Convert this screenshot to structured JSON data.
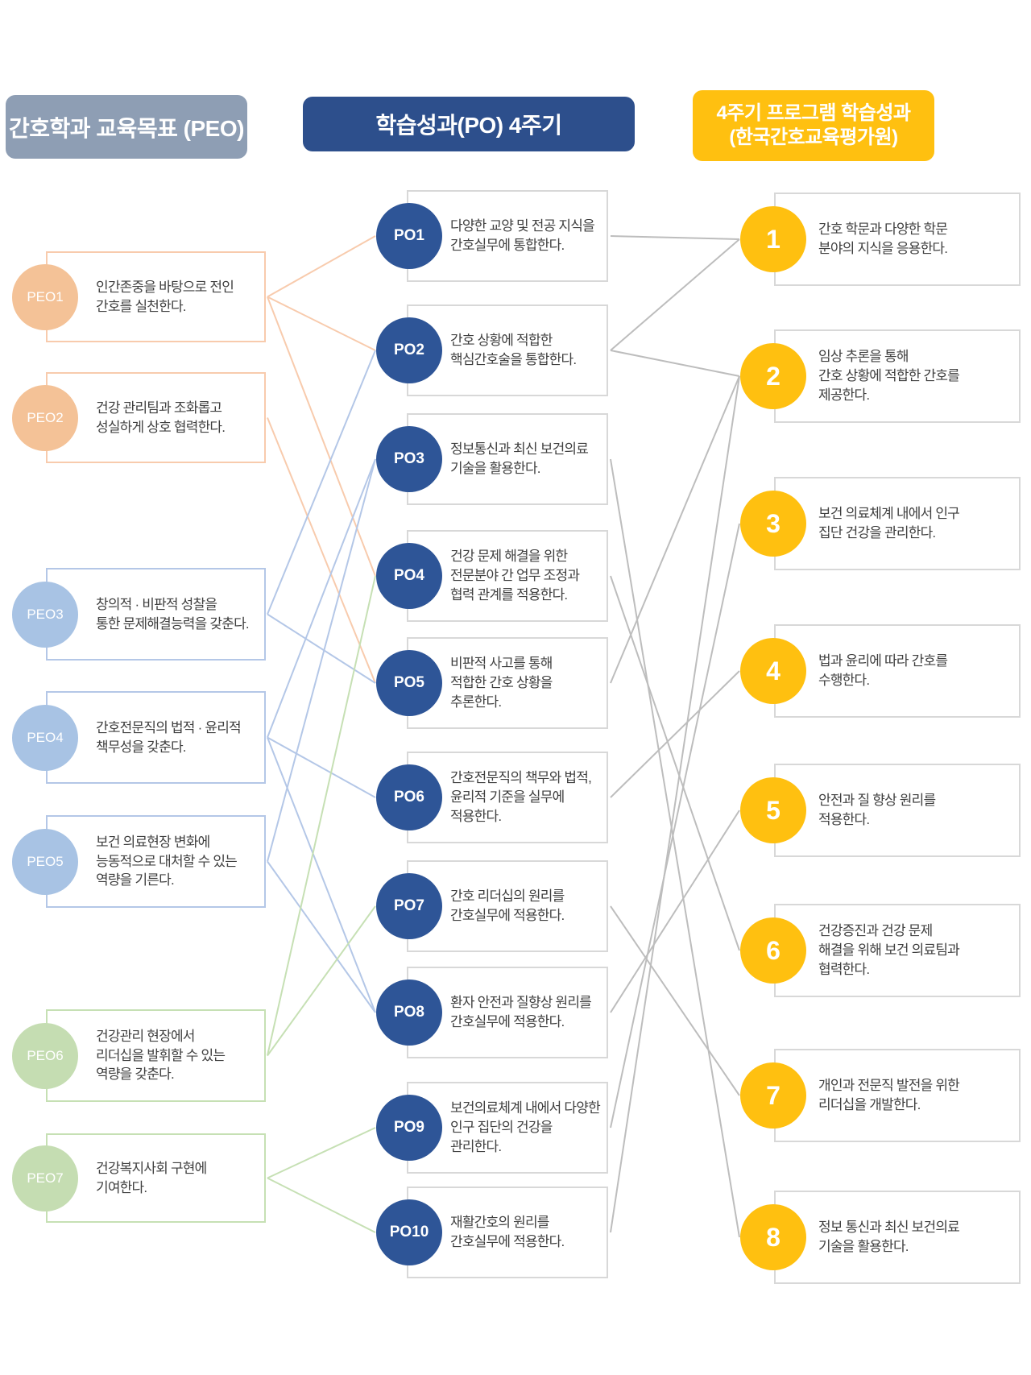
{
  "headers": {
    "left": "간호학과 교육목표 (PEO)",
    "middle": "학습성과(PO) 4주기",
    "right_line1": "4주기 프로그램 학습성과",
    "right_line2": "(한국간호교육평가원)"
  },
  "peo_items": [
    {
      "id": "PEO1",
      "label": "PEO1",
      "color_key": "peach",
      "text": "인간존중을 바탕으로 전인\n간호를 실천한다."
    },
    {
      "id": "PEO2",
      "label": "PEO2",
      "color_key": "peach",
      "text": "건강 관리팀과 조화롭고\n성실하게 상호 협력한다."
    },
    {
      "id": "PEO3",
      "label": "PEO3",
      "color_key": "blue",
      "text": "창의적 · 비판적 성찰을\n통한 문제해결능력을 갖춘다."
    },
    {
      "id": "PEO4",
      "label": "PEO4",
      "color_key": "blue",
      "text": "간호전문직의 법적 · 윤리적\n책무성을 갖춘다."
    },
    {
      "id": "PEO5",
      "label": "PEO5",
      "color_key": "blue",
      "text": "보건 의료현장 변화에\n능동적으로 대처할 수 있는\n역량을 기른다."
    },
    {
      "id": "PEO6",
      "label": "PEO6",
      "color_key": "green",
      "text": "건강관리 현장에서\n리더십을 발휘할 수 있는\n역량을 갖춘다."
    },
    {
      "id": "PEO7",
      "label": "PEO7",
      "color_key": "green",
      "text": "건강복지사회 구현에\n기여한다."
    }
  ],
  "po_items": [
    {
      "id": "PO1",
      "label": "PO1",
      "text": "다양한 교양 및 전공 지식을\n간호실무에 통합한다."
    },
    {
      "id": "PO2",
      "label": "PO2",
      "text": "간호 상황에 적합한\n핵심간호술을 통합한다."
    },
    {
      "id": "PO3",
      "label": "PO3",
      "text": "정보통신과 최신 보건의료\n기술을 활용한다."
    },
    {
      "id": "PO4",
      "label": "PO4",
      "text": "건강 문제 해결을 위한\n전문분야 간 업무 조정과\n협력 관계를 적용한다."
    },
    {
      "id": "PO5",
      "label": "PO5",
      "text": "비판적 사고를 통해\n적합한 간호 상황을\n추론한다."
    },
    {
      "id": "PO6",
      "label": "PO6",
      "text": "간호전문직의 책무와 법적,\n윤리적 기준을 실무에\n적용한다."
    },
    {
      "id": "PO7",
      "label": "PO7",
      "text": "간호 리더십의 원리를\n간호실무에 적용한다."
    },
    {
      "id": "PO8",
      "label": "PO8",
      "text": "환자 안전과 질향상 원리를\n간호실무에 적용한다."
    },
    {
      "id": "PO9",
      "label": "PO9",
      "text": "보건의료체계 내에서 다양한\n인구 집단의 건강을\n관리한다."
    },
    {
      "id": "PO10",
      "label": "PO10",
      "text": "재활간호의 원리를\n간호실무에 적용한다."
    }
  ],
  "plo_items": [
    {
      "id": "1",
      "label": "1",
      "text": "간호 학문과 다양한 학문\n분야의 지식을 응용한다."
    },
    {
      "id": "2",
      "label": "2",
      "text": "임상 추론을 통해\n간호 상황에 적합한 간호를\n제공한다."
    },
    {
      "id": "3",
      "label": "3",
      "text": "보건 의료체계 내에서 인구\n집단 건강을 관리한다."
    },
    {
      "id": "4",
      "label": "4",
      "text": "법과 윤리에 따라 간호를\n수행한다."
    },
    {
      "id": "5",
      "label": "5",
      "text": "안전과 질 향상 원리를\n적용한다."
    },
    {
      "id": "6",
      "label": "6",
      "text": "건강증진과 건강 문제\n해결을 위해 보건 의료팀과\n협력한다."
    },
    {
      "id": "7",
      "label": "7",
      "text": "개인과 전문직 발전을 위한\n리더십을 개발한다."
    },
    {
      "id": "8",
      "label": "8",
      "text": "정보 통신과 최신 보건의료\n기술을 활용한다."
    }
  ],
  "connections": {
    "peo_po": [
      [
        "PEO1",
        "PO1"
      ],
      [
        "PEO1",
        "PO2"
      ],
      [
        "PEO1",
        "PO4"
      ],
      [
        "PEO2",
        "PO5"
      ],
      [
        "PEO3",
        "PO2"
      ],
      [
        "PEO3",
        "PO5"
      ],
      [
        "PEO4",
        "PO3"
      ],
      [
        "PEO4",
        "PO6"
      ],
      [
        "PEO4",
        "PO8"
      ],
      [
        "PEO5",
        "PO3"
      ],
      [
        "PEO5",
        "PO8"
      ],
      [
        "PEO6",
        "PO4"
      ],
      [
        "PEO6",
        "PO7"
      ],
      [
        "PEO7",
        "PO9"
      ],
      [
        "PEO7",
        "PO10"
      ]
    ],
    "po_plo": [
      [
        "PO1",
        "1"
      ],
      [
        "PO2",
        "1"
      ],
      [
        "PO2",
        "2"
      ],
      [
        "PO5",
        "2"
      ],
      [
        "PO10",
        "2"
      ],
      [
        "PO9",
        "3"
      ],
      [
        "PO6",
        "4"
      ],
      [
        "PO8",
        "5"
      ],
      [
        "PO4",
        "6"
      ],
      [
        "PO7",
        "7"
      ],
      [
        "PO3",
        "8"
      ]
    ]
  },
  "colors": {
    "peach_fill": "#f4c297",
    "peach_line": "#f8cbad",
    "blue_fill": "#a8c3e4",
    "blue_line": "#b4c7e7",
    "green_fill": "#c5ddb2",
    "green_line": "#c6e0b4",
    "navy": "#2e5597",
    "navy_header": "#2d4f8c",
    "yellow": "#ffc010",
    "gray_header": "#8e9eb4",
    "gray_box_border": "#d8d8d8",
    "gray_line": "#bdbdbd",
    "text": "#3f3f3f"
  }
}
